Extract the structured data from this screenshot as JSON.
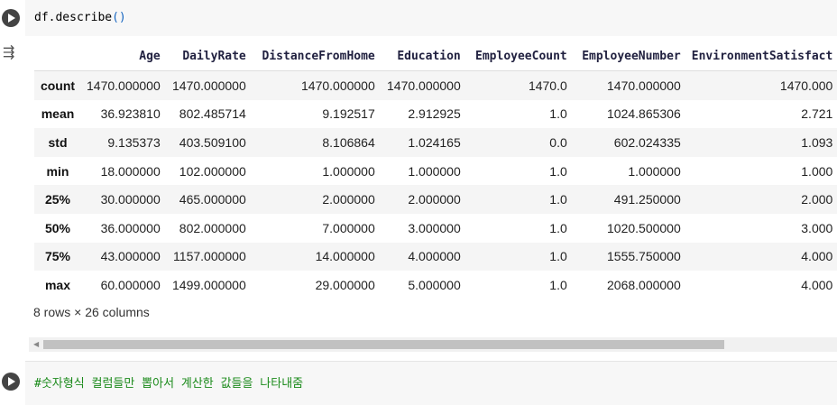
{
  "cells": [
    {
      "code": "df.describe",
      "paren": "()"
    },
    {
      "code": "#숫자형식 컬럼들만 뽑아서 계산한 값들을 나타내줌"
    }
  ],
  "output": {
    "columns": [
      "",
      "Age",
      "DailyRate",
      "DistanceFromHome",
      "Education",
      "EmployeeCount",
      "EmployeeNumber",
      "EnvironmentSatisfact"
    ],
    "rows": [
      [
        "count",
        "1470.000000",
        "1470.000000",
        "1470.000000",
        "1470.000000",
        "1470.0",
        "1470.000000",
        "1470.000"
      ],
      [
        "mean",
        "36.923810",
        "802.485714",
        "9.192517",
        "2.912925",
        "1.0",
        "1024.865306",
        "2.721"
      ],
      [
        "std",
        "9.135373",
        "403.509100",
        "8.106864",
        "1.024165",
        "0.0",
        "602.024335",
        "1.093"
      ],
      [
        "min",
        "18.000000",
        "102.000000",
        "1.000000",
        "1.000000",
        "1.0",
        "1.000000",
        "1.000"
      ],
      [
        "25%",
        "30.000000",
        "465.000000",
        "2.000000",
        "2.000000",
        "1.0",
        "491.250000",
        "2.000"
      ],
      [
        "50%",
        "36.000000",
        "802.000000",
        "7.000000",
        "3.000000",
        "1.0",
        "1020.500000",
        "3.000"
      ],
      [
        "75%",
        "43.000000",
        "1157.000000",
        "14.000000",
        "4.000000",
        "1.0",
        "1555.750000",
        "4.000"
      ],
      [
        "max",
        "60.000000",
        "1499.000000",
        "29.000000",
        "5.000000",
        "1.0",
        "2068.000000",
        "4.000"
      ]
    ],
    "shape": "8 rows × 26 columns"
  },
  "icons": {
    "run": "play-circle-icon",
    "output": "output-toggle-icon"
  }
}
